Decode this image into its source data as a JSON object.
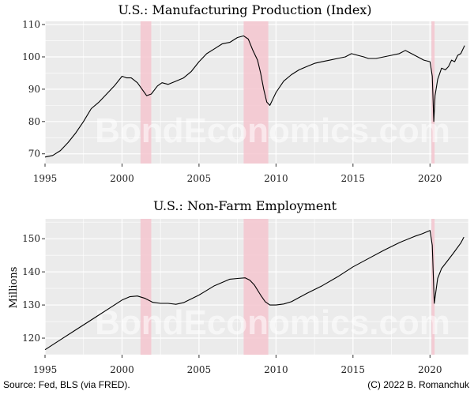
{
  "watermark": "BondEconomics.com",
  "source": "Source: Fed, BLS (via FRED).",
  "copyright": "(C) 2022 B. Romanchuk",
  "colors": {
    "panel": "#ebebeb",
    "grid": "#ffffff",
    "recession": "#f5c6cf",
    "line": "#000000"
  },
  "chart_data": [
    {
      "type": "line",
      "title": "U.S.: Manufacturing Production (Index)",
      "ylabel": "",
      "xlim": [
        1995,
        2022.5
      ],
      "ylim": [
        67,
        111
      ],
      "xticks": [
        1995,
        2000,
        2005,
        2010,
        2015,
        2020
      ],
      "yticks": [
        70,
        80,
        90,
        100,
        110
      ],
      "recessions": [
        [
          2001.2,
          2001.9
        ],
        [
          2007.9,
          2009.5
        ],
        [
          2020.1,
          2020.3
        ]
      ],
      "series": [
        {
          "x": [
            1995.0,
            1995.5,
            1996.0,
            1996.5,
            1997.0,
            1997.5,
            1998.0,
            1998.5,
            1999.0,
            1999.5,
            2000.0,
            2000.3,
            2000.6,
            2001.0,
            2001.3,
            2001.6,
            2001.9,
            2002.3,
            2002.6,
            2003.0,
            2003.5,
            2004.0,
            2004.5,
            2005.0,
            2005.5,
            2006.0,
            2006.5,
            2007.0,
            2007.5,
            2007.9,
            2008.2,
            2008.5,
            2008.8,
            2009.0,
            2009.2,
            2009.4,
            2009.6,
            2009.8,
            2010.0,
            2010.5,
            2011.0,
            2011.5,
            2012.0,
            2012.5,
            2013.0,
            2013.5,
            2014.0,
            2014.5,
            2014.9,
            2015.3,
            2015.7,
            2016.0,
            2016.5,
            2017.0,
            2017.5,
            2018.0,
            2018.4,
            2018.8,
            2019.2,
            2019.6,
            2020.0,
            2020.15,
            2020.25,
            2020.33,
            2020.5,
            2020.75,
            2021.0,
            2021.2,
            2021.4,
            2021.6,
            2021.8,
            2022.0,
            2022.25
          ],
          "y": [
            69,
            69.5,
            71,
            73.5,
            76.5,
            80,
            84,
            86,
            88.5,
            91,
            94,
            93.5,
            93.5,
            92,
            90,
            88,
            88.5,
            91,
            92,
            91.5,
            92.5,
            93.5,
            95.5,
            98.5,
            101,
            102.5,
            104,
            104.5,
            106,
            106.5,
            105.5,
            102,
            99,
            95,
            90,
            86,
            85,
            87,
            89,
            92.5,
            94.5,
            96,
            97,
            98,
            98.5,
            99,
            99.5,
            100,
            101,
            100.5,
            100,
            99.5,
            99.5,
            100,
            100.5,
            101,
            102,
            101,
            100,
            99,
            98.5,
            94,
            80,
            88,
            93,
            96.5,
            96,
            97,
            99,
            98.5,
            100.5,
            101,
            103.5
          ]
        }
      ]
    },
    {
      "type": "line",
      "title": "U.S.: Non-Farm Employment",
      "ylabel": "Millions",
      "xlim": [
        1995,
        2022.5
      ],
      "ylim": [
        115,
        156
      ],
      "xticks": [
        1995,
        2000,
        2005,
        2010,
        2015,
        2020
      ],
      "yticks": [
        120,
        130,
        140,
        150
      ],
      "recessions": [
        [
          2001.2,
          2001.9
        ],
        [
          2007.9,
          2009.5
        ],
        [
          2020.1,
          2020.3
        ]
      ],
      "series": [
        {
          "x": [
            1995.0,
            1996.0,
            1997.0,
            1998.0,
            1999.0,
            2000.0,
            2000.5,
            2001.0,
            2001.5,
            2002.0,
            2002.5,
            2003.0,
            2003.5,
            2004.0,
            2005.0,
            2006.0,
            2007.0,
            2007.5,
            2008.0,
            2008.3,
            2008.6,
            2009.0,
            2009.3,
            2009.6,
            2010.0,
            2010.5,
            2011.0,
            2012.0,
            2013.0,
            2014.0,
            2015.0,
            2016.0,
            2017.0,
            2018.0,
            2019.0,
            2019.5,
            2020.0,
            2020.15,
            2020.28,
            2020.5,
            2020.75,
            2021.0,
            2021.5,
            2022.0,
            2022.2
          ],
          "y": [
            116.5,
            119.5,
            122.5,
            125.5,
            128.5,
            131.5,
            132.5,
            132.7,
            132.0,
            130.8,
            130.5,
            130.5,
            130.2,
            130.7,
            133,
            135.8,
            137.8,
            138,
            138.2,
            137.5,
            136,
            133,
            131,
            130,
            130,
            130.3,
            131,
            133.5,
            135.8,
            138.5,
            141.5,
            144,
            146.5,
            148.8,
            150.7,
            151.5,
            152.5,
            148,
            130.5,
            138,
            141,
            142.5,
            145.5,
            148.7,
            150.5
          ]
        }
      ]
    }
  ]
}
